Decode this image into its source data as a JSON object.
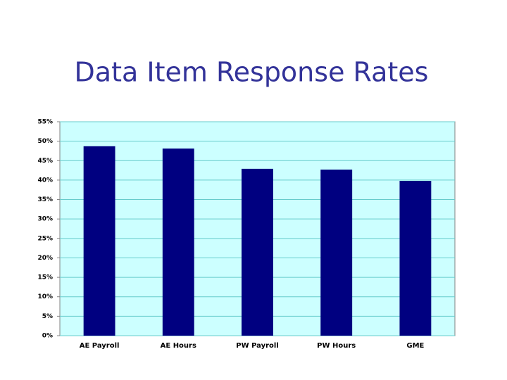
{
  "chart_data": {
    "type": "bar",
    "title": "Data Item Response Rates",
    "categories": [
      "AE Payroll",
      "AE Hours",
      "PW Payroll",
      "PW Hours",
      "GME"
    ],
    "values": [
      48.7,
      48.1,
      42.9,
      42.7,
      39.8
    ],
    "color": "#000080",
    "ylim": [
      0,
      55
    ],
    "yticks": [
      {
        "value": 0,
        "label": "0%"
      },
      {
        "value": 5,
        "label": "5%"
      },
      {
        "value": 10,
        "label": "10%"
      },
      {
        "value": 15,
        "label": "15%"
      },
      {
        "value": 20,
        "label": "20%"
      },
      {
        "value": 25,
        "label": "25%"
      },
      {
        "value": 30,
        "label": "30%"
      },
      {
        "value": 35,
        "label": "35%"
      },
      {
        "value": 40,
        "label": "40%"
      },
      {
        "value": 45,
        "label": "45%"
      },
      {
        "value": 50,
        "label": "50%"
      },
      {
        "value": 55,
        "label": "55%"
      }
    ],
    "grid": true
  }
}
